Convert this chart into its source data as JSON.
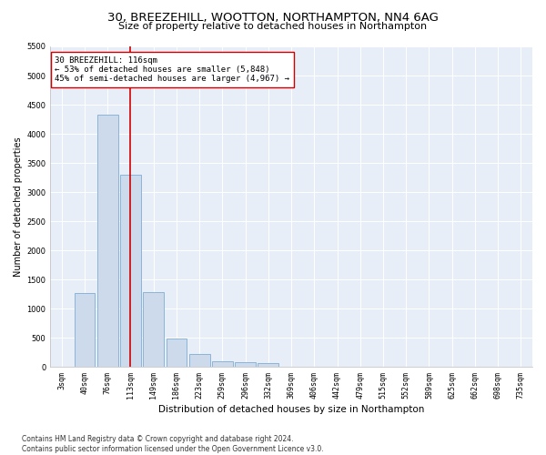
{
  "title": "30, BREEZEHILL, WOOTTON, NORTHAMPTON, NN4 6AG",
  "subtitle": "Size of property relative to detached houses in Northampton",
  "xlabel": "Distribution of detached houses by size in Northampton",
  "ylabel": "Number of detached properties",
  "bin_labels": [
    "3sqm",
    "40sqm",
    "76sqm",
    "113sqm",
    "149sqm",
    "186sqm",
    "223sqm",
    "259sqm",
    "296sqm",
    "332sqm",
    "369sqm",
    "406sqm",
    "442sqm",
    "479sqm",
    "515sqm",
    "552sqm",
    "589sqm",
    "625sqm",
    "662sqm",
    "698sqm",
    "735sqm"
  ],
  "bar_values": [
    0,
    1270,
    4330,
    3300,
    1280,
    490,
    215,
    95,
    75,
    60,
    0,
    0,
    0,
    0,
    0,
    0,
    0,
    0,
    0,
    0,
    0
  ],
  "bar_color": "#ccdaec",
  "bar_edgecolor": "#8ab4d8",
  "bar_linewidth": 0.7,
  "vline_x": 3.0,
  "vline_color": "#cc0000",
  "vline_linewidth": 1.2,
  "annotation_text": "30 BREEZEHILL: 116sqm\n← 53% of detached houses are smaller (5,848)\n45% of semi-detached houses are larger (4,967) →",
  "annotation_box_edgecolor": "#cc0000",
  "annotation_box_facecolor": "#ffffff",
  "ylim": [
    0,
    5500
  ],
  "yticks": [
    0,
    500,
    1000,
    1500,
    2000,
    2500,
    3000,
    3500,
    4000,
    4500,
    5000,
    5500
  ],
  "background_color": "#e8eef7",
  "footnote": "Contains HM Land Registry data © Crown copyright and database right 2024.\nContains public sector information licensed under the Open Government Licence v3.0.",
  "title_fontsize": 9.5,
  "subtitle_fontsize": 8.0,
  "xlabel_fontsize": 7.5,
  "ylabel_fontsize": 7.0,
  "tick_fontsize": 6.0,
  "annotation_fontsize": 6.5,
  "footnote_fontsize": 5.5
}
